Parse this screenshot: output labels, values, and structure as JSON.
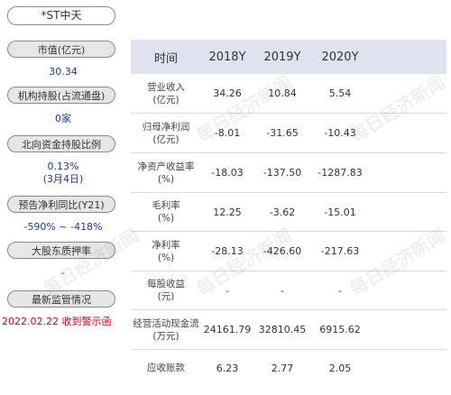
{
  "left_panel": {
    "title": "*ST中天",
    "items": [
      {
        "label": "市值(亿元)",
        "value": "30.34"
      },
      {
        "label": "机构持股(占流通盘)",
        "value": "0家"
      },
      {
        "label": "北向资金持股比例",
        "value": "0.13%",
        "value2": "(3月4日)"
      },
      {
        "label": "预告净利同比(Y21)",
        "value": "-590% ~ -418%"
      },
      {
        "label": "大股东质押率",
        "value": "-"
      },
      {
        "label": "最新监管情况",
        "value": "2022.02.22 收到警示函"
      }
    ]
  },
  "table": {
    "headers": [
      "时间",
      "2018Y",
      "2019Y",
      "2020Y"
    ],
    "rows": [
      {
        "label1": "营业收入",
        "label2": "(亿元)",
        "values": [
          "34.26",
          "10.84",
          "5.54"
        ]
      },
      {
        "label1": "归母净利润",
        "label2": "(亿元)",
        "values": [
          "-8.01",
          "-31.65",
          "-10.43"
        ]
      },
      {
        "label1": "净资产收益率",
        "label2": "(%)",
        "values": [
          "-18.03",
          "-137.50",
          "-1287.83"
        ]
      },
      {
        "label1": "毛利率",
        "label2": "(%)",
        "values": [
          "12.25",
          "-3.62",
          "-15.01"
        ]
      },
      {
        "label1": "净利率",
        "label2": "(%)",
        "values": [
          "-28.13",
          "-426.60",
          "-217.63"
        ]
      },
      {
        "label1": "每股收益",
        "label2": "(元)",
        "values": [
          "-",
          "-",
          "-"
        ]
      },
      {
        "label1": "经营活动现金流",
        "label2": "(万元)",
        "values": [
          "24161.79",
          "32810.45",
          "6915.62"
        ]
      },
      {
        "label1": "应收账款",
        "label2": "",
        "values": [
          "6.23",
          "2.77",
          "2.05"
        ]
      }
    ]
  },
  "watermark": "每日经济新闻",
  "colors": {
    "value_blue": "#1a3e8c",
    "alert_red": "#d0021b",
    "header_bg": "#dfe3ef"
  }
}
